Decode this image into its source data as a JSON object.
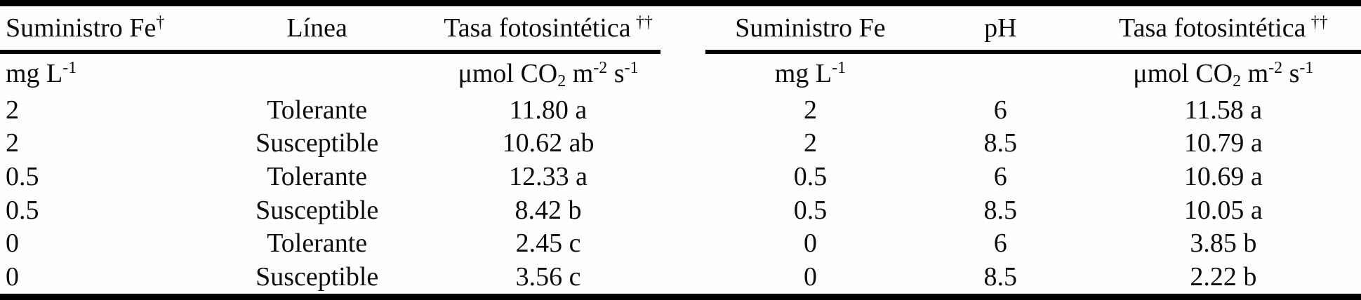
{
  "document": {
    "type": "scientific-table",
    "language": "es",
    "text_color": "#0d0d0d",
    "rule_color": "#000000",
    "background_color": "#fefefe"
  },
  "tables": [
    {
      "id": "fe-by-linea",
      "headers": [
        {
          "label": "Suministro Fe",
          "sup": "†"
        },
        {
          "label": "Línea",
          "sup": ""
        },
        {
          "label": "Tasa fotosintética",
          "sup": "††"
        }
      ],
      "units": {
        "fe": {
          "base": "mg L",
          "sup": "-1"
        },
        "tasa": {
          "p1": "μmol CO",
          "sub": "2",
          "p2": " m",
          "sup2": "-2",
          "p3": " s",
          "sup3": "-1"
        }
      },
      "rows": [
        [
          "2",
          "Tolerante",
          "11.80 a"
        ],
        [
          "2",
          "Susceptible",
          "10.62 ab"
        ],
        [
          "0.5",
          "Tolerante",
          "12.33 a"
        ],
        [
          "0.5",
          "Susceptible",
          "8.42 b"
        ],
        [
          "0",
          "Tolerante",
          "2.45 c"
        ],
        [
          "0",
          "Susceptible",
          "3.56 c"
        ]
      ]
    },
    {
      "id": "fe-by-ph",
      "headers": [
        {
          "label": "Suministro Fe",
          "sup": ""
        },
        {
          "label": "pH",
          "sup": ""
        },
        {
          "label": "Tasa fotosintética",
          "sup": "††"
        }
      ],
      "units": {
        "fe": {
          "base": "mg L",
          "sup": "-1"
        },
        "tasa": {
          "p1": "μmol CO",
          "sub": "2",
          "p2": " m",
          "sup2": "-2",
          "p3": " s",
          "sup3": "-1"
        }
      },
      "rows": [
        [
          "2",
          "6",
          "11.58 a"
        ],
        [
          "2",
          "8.5",
          "10.79 a"
        ],
        [
          "0.5",
          "6",
          "10.69 a"
        ],
        [
          "0.5",
          "8.5",
          "10.05 a"
        ],
        [
          "0",
          "6",
          "3.85 b"
        ],
        [
          "0",
          "8.5",
          "2.22 b"
        ]
      ]
    }
  ]
}
